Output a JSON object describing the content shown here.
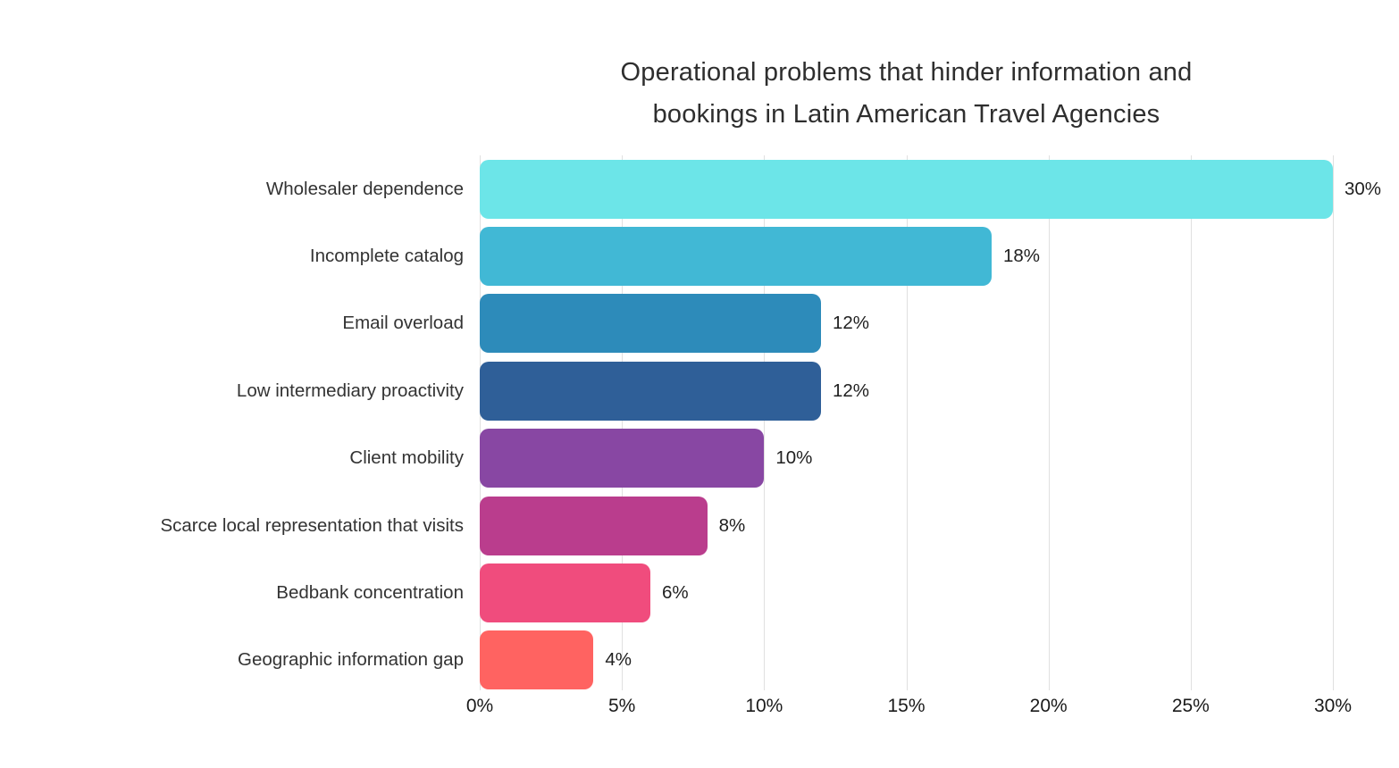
{
  "header": {
    "title_line1": "Operational problems that hinder information and",
    "title_line2": "bookings in Latin American Travel Agencies"
  },
  "chart_data": {
    "type": "bar",
    "orientation": "horizontal",
    "title": "Operational problems that hinder information and bookings in Latin American Travel Agencies",
    "categories": [
      "Wholesaler dependence",
      "Incomplete catalog",
      "Email overload",
      "Low intermediary proactivity",
      "Client mobility",
      "Scarce local representation that visits",
      "Bedbank concentration",
      "Geographic information gap"
    ],
    "values": [
      30,
      18,
      12,
      12,
      10,
      8,
      6,
      4
    ],
    "value_labels": [
      "30%",
      "18%",
      "12%",
      "12%",
      "10%",
      "8%",
      "6%",
      "4%"
    ],
    "bar_colors": [
      "#6ce5e8",
      "#41b8d5",
      "#2d8bba",
      "#2f5f98",
      "#8847a3",
      "#ba3d8d",
      "#f04c7d",
      "#ff6361"
    ],
    "xlabel": "",
    "ylabel": "",
    "xlim": [
      0,
      30
    ],
    "x_ticks": [
      0,
      5,
      10,
      15,
      20,
      25,
      30
    ],
    "x_tick_labels": [
      "0%",
      "5%",
      "10%",
      "15%",
      "20%",
      "25%",
      "30%"
    ],
    "grid": "vertical",
    "gridline_color": "#e0e0e0",
    "legend": "none",
    "background_color": "#ffffff"
  }
}
